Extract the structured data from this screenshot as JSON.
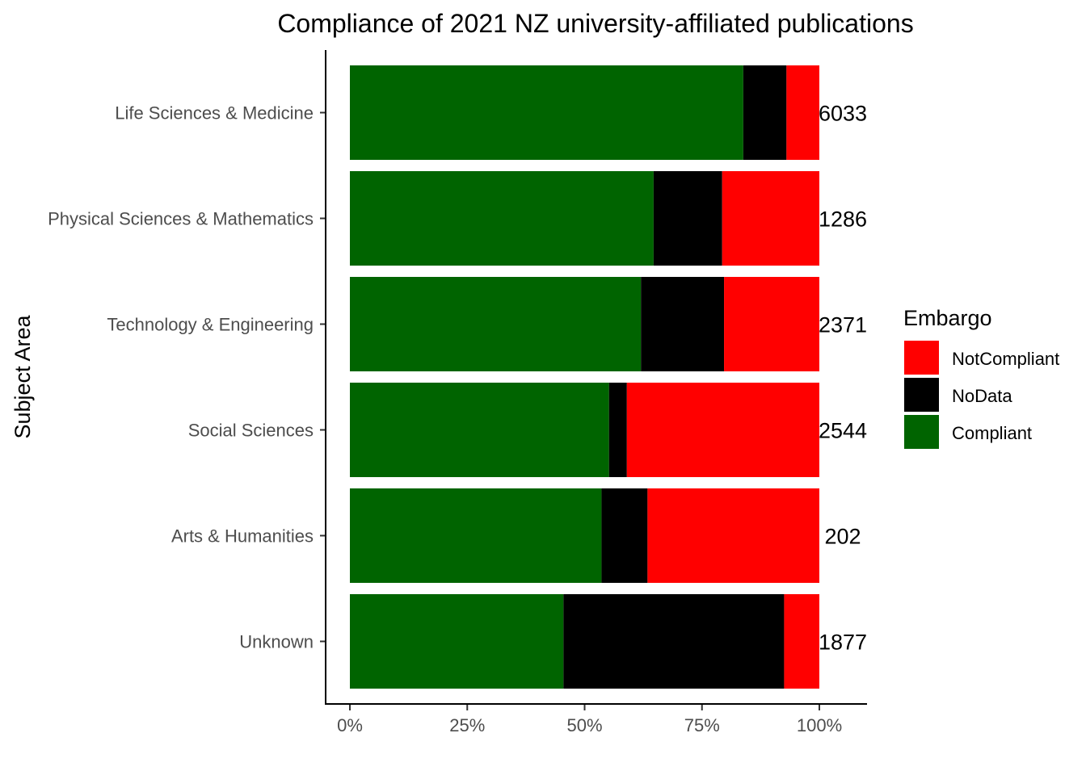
{
  "chart_data": {
    "type": "bar",
    "orientation": "horizontal",
    "stacked": "percent",
    "title": "Compliance of 2021 NZ university-affiliated publications",
    "xlabel": "",
    "ylabel": "Subject Area",
    "xlim": [
      0,
      1
    ],
    "x_ticks": [
      "0%",
      "25%",
      "50%",
      "75%",
      "100%"
    ],
    "x_tick_values": [
      0,
      0.25,
      0.5,
      0.75,
      1.0
    ],
    "categories": [
      "Life Sciences & Medicine",
      "Physical Sciences & Mathematics",
      "Technology & Engineering",
      "Social Sciences",
      "Arts & Humanities",
      "Unknown"
    ],
    "totals": [
      "6033",
      "1286",
      "2371",
      "2544",
      "202",
      "1877"
    ],
    "series": [
      {
        "name": "Compliant",
        "color": "#006400",
        "values": [
          0.838,
          0.647,
          0.62,
          0.552,
          0.536,
          0.455
        ]
      },
      {
        "name": "NoData",
        "color": "#000000",
        "values": [
          0.092,
          0.146,
          0.177,
          0.038,
          0.098,
          0.47
        ]
      },
      {
        "name": "NotCompliant",
        "color": "#ff0000",
        "values": [
          0.07,
          0.207,
          0.203,
          0.41,
          0.366,
          0.075
        ]
      }
    ],
    "legend": {
      "title": "Embargo",
      "position": "right",
      "order": [
        "NotCompliant",
        "NoData",
        "Compliant"
      ]
    },
    "grid": false
  }
}
